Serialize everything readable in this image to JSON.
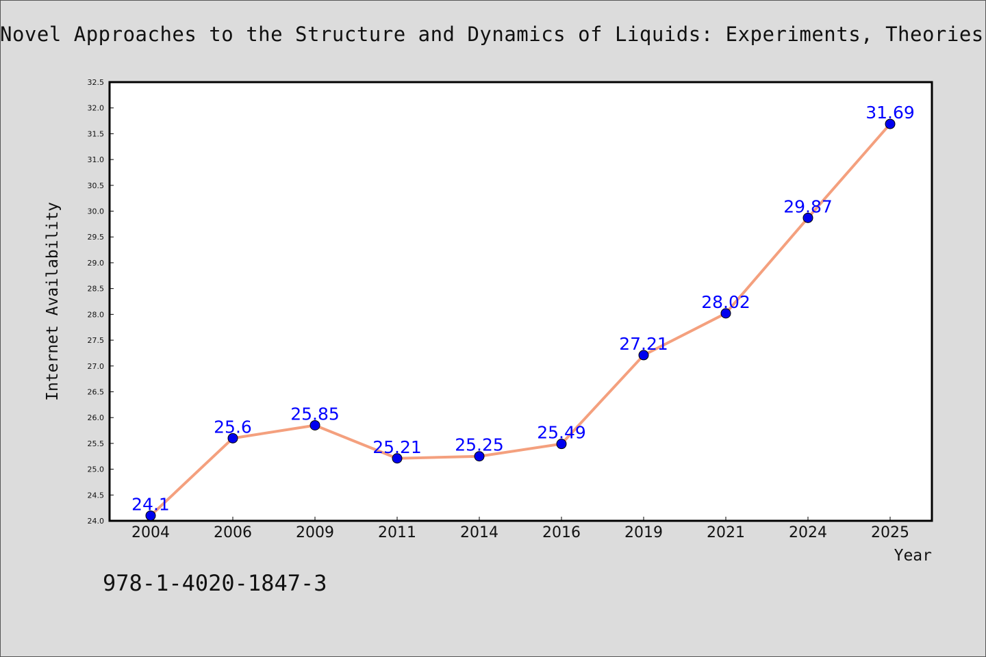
{
  "chart_data": {
    "type": "line",
    "title": "Novel Approaches to the Structure and Dynamics of Liquids: Experiments, Theories and Simulations",
    "xlabel": "Year",
    "ylabel": "Internet Availability",
    "categories": [
      "2004",
      "2006",
      "2009",
      "2011",
      "2014",
      "2016",
      "2019",
      "2021",
      "2024",
      "2025"
    ],
    "series": [
      {
        "values": [
          24.1,
          25.6,
          25.85,
          25.21,
          25.25,
          25.49,
          27.21,
          28.02,
          29.87,
          31.69
        ],
        "labels": [
          "24.1",
          "25.6",
          "25.85",
          "25.21",
          "25.25",
          "25.49",
          "27.21",
          "28.02",
          "29.87",
          "31.69"
        ],
        "line_color": "#f4a07e",
        "marker_color": "#0000ee"
      }
    ],
    "ylim": [
      24.0,
      32.5
    ],
    "yticks": [
      "24.0",
      "24.5",
      "25.0",
      "25.5",
      "26.0",
      "26.5",
      "27.0",
      "27.5",
      "28.0",
      "28.5",
      "29.0",
      "29.5",
      "30.0",
      "30.5",
      "31.0",
      "31.5",
      "32.0",
      "32.5"
    ],
    "grid": false,
    "legend": "none"
  },
  "footer": {
    "isbn": "978-1-4020-1847-3"
  },
  "colors": {
    "background": "#dcdcdc",
    "plot_background": "#ffffff",
    "label_color": "#0000ff"
  }
}
